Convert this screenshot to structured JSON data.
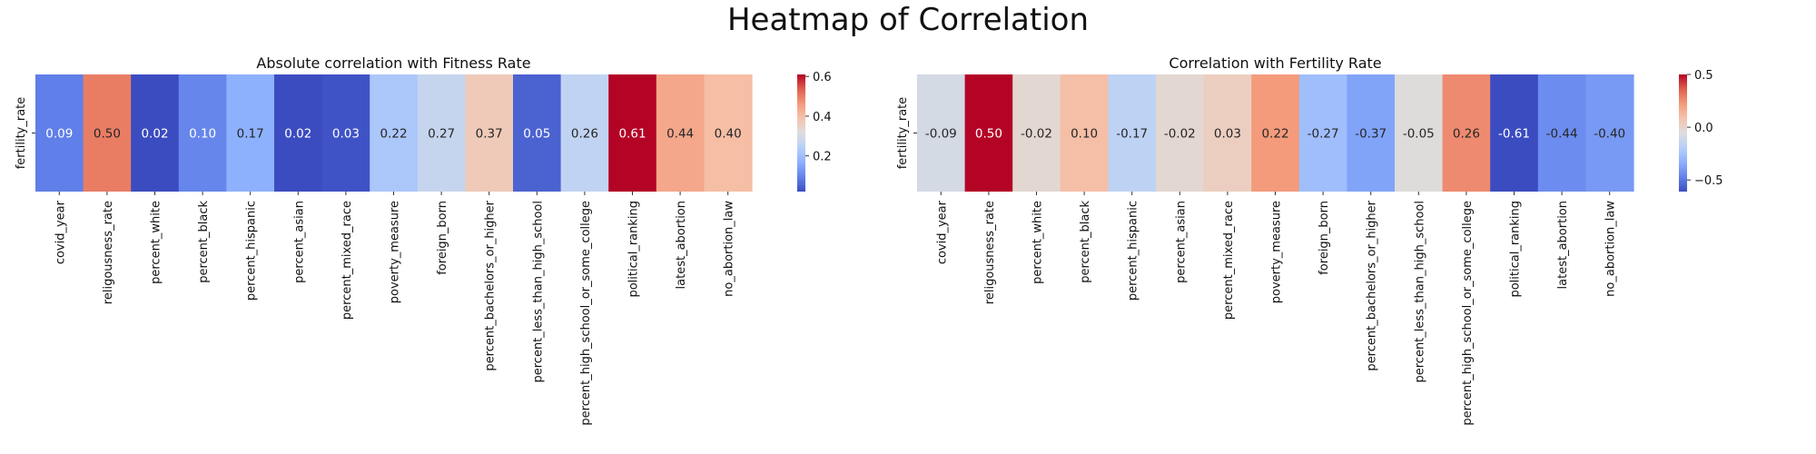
{
  "figure": {
    "title": "Heatmap of Correlation"
  },
  "chart_data": [
    {
      "type": "heatmap",
      "title": "Absolute correlation with Fitness Rate",
      "row_label": "fertility_rate",
      "columns": [
        "covid_year",
        "religousness_rate",
        "percent_white",
        "percent_black",
        "percent_hispanic",
        "percent_asian",
        "percent_mixed_race",
        "poverty_measure",
        "foreign_born",
        "percent_bachelors_or_higher",
        "percent_less_than_high_school",
        "percent_high_school_or_some_college",
        "political_ranking",
        "latest_abortion",
        "no_abortion_law"
      ],
      "values": [
        0.09,
        0.5,
        0.02,
        0.1,
        0.17,
        0.02,
        0.03,
        0.22,
        0.27,
        0.37,
        0.05,
        0.26,
        0.61,
        0.44,
        0.4
      ],
      "vmin": 0.02,
      "vmax": 0.61,
      "colorbar_ticks": [
        0.2,
        0.4,
        0.6
      ],
      "colorbar_labels": [
        "0.2",
        "0.4",
        "0.6"
      ],
      "colormap": "coolwarm"
    },
    {
      "type": "heatmap",
      "title": "Correlation with Fertility Rate",
      "row_label": "fertility_rate",
      "columns": [
        "covid_year",
        "religousness_rate",
        "percent_white",
        "percent_black",
        "percent_hispanic",
        "percent_asian",
        "percent_mixed_race",
        "poverty_measure",
        "foreign_born",
        "percent_bachelors_or_higher",
        "percent_less_than_high_school",
        "percent_high_school_or_some_college",
        "political_ranking",
        "latest_abortion",
        "no_abortion_law"
      ],
      "values": [
        -0.09,
        0.5,
        -0.02,
        0.1,
        -0.17,
        -0.02,
        0.03,
        0.22,
        -0.27,
        -0.37,
        -0.05,
        0.26,
        -0.61,
        -0.44,
        -0.4
      ],
      "vmin": -0.61,
      "vmax": 0.5,
      "colorbar_ticks": [
        -0.5,
        0.0,
        0.5
      ],
      "colorbar_labels": [
        "−0.5",
        "0.0",
        "0.5"
      ],
      "colormap": "coolwarm"
    }
  ]
}
